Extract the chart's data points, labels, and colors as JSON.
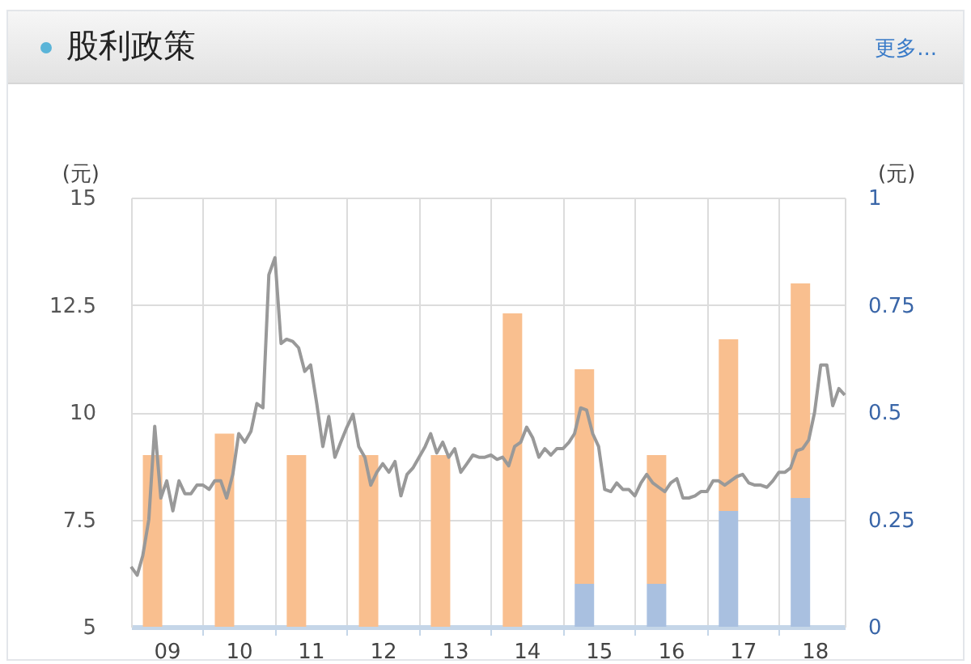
{
  "chart_data": {
    "type": "line",
    "title": "股利政策",
    "annotations": [
      "更多..."
    ],
    "ylabel": "(元)",
    "y2label": "(元)",
    "x": [
      "2009-01",
      "2009-02",
      "2009-03",
      "2009-04",
      "2009-05",
      "2009-06",
      "2009-07",
      "2009-08",
      "2009-09",
      "2009-10",
      "2009-11",
      "2009-12",
      "2010-01",
      "2010-02",
      "2010-03",
      "2010-04",
      "2010-05",
      "2010-06",
      "2010-07",
      "2010-08",
      "2010-09",
      "2010-10",
      "2010-11",
      "2010-12",
      "2011-01",
      "2011-02",
      "2011-03",
      "2011-04",
      "2011-05",
      "2011-06",
      "2011-07",
      "2011-08",
      "2011-09",
      "2011-10",
      "2011-11",
      "2011-12",
      "2012-01",
      "2012-02",
      "2012-03",
      "2012-04",
      "2012-05",
      "2012-06",
      "2012-07",
      "2012-08",
      "2012-09",
      "2012-10",
      "2012-11",
      "2012-12",
      "2013-01",
      "2013-02",
      "2013-03",
      "2013-04",
      "2013-05",
      "2013-06",
      "2013-07",
      "2013-08",
      "2013-09",
      "2013-10",
      "2013-11",
      "2013-12",
      "2014-01",
      "2014-02",
      "2014-03",
      "2014-04",
      "2014-05",
      "2014-06",
      "2014-07",
      "2014-08",
      "2014-09",
      "2014-10",
      "2014-11",
      "2014-12",
      "2015-01",
      "2015-02",
      "2015-03",
      "2015-04",
      "2015-05",
      "2015-06",
      "2015-07",
      "2015-08",
      "2015-09",
      "2015-10",
      "2015-11",
      "2015-12",
      "2016-01",
      "2016-02",
      "2016-03",
      "2016-04",
      "2016-05",
      "2016-06",
      "2016-07",
      "2016-08",
      "2016-09",
      "2016-10",
      "2016-11",
      "2016-12",
      "2017-01",
      "2017-02",
      "2017-03",
      "2017-04",
      "2017-05",
      "2017-06",
      "2017-07",
      "2017-08",
      "2017-09",
      "2017-10",
      "2017-11",
      "2017-12",
      "2018-01",
      "2018-02",
      "2018-03",
      "2018-04",
      "2018-05",
      "2018-06",
      "2018-07",
      "2018-08",
      "2018-09",
      "2018-10",
      "2018-11",
      "2018-12"
    ],
    "xlim": [
      "2009-01",
      "2018-12"
    ],
    "xticks": [
      {
        "value": "2009-07",
        "label": "09"
      },
      {
        "value": "2010-01",
        "label": null
      },
      {
        "value": "2010-07",
        "label": "10"
      },
      {
        "value": "2011-01",
        "label": null
      },
      {
        "value": "2011-07",
        "label": "11"
      },
      {
        "value": "2012-01",
        "label": null
      },
      {
        "value": "2012-07",
        "label": "12"
      },
      {
        "value": "2013-01",
        "label": null
      },
      {
        "value": "2013-07",
        "label": "13"
      },
      {
        "value": "2014-01",
        "label": null
      },
      {
        "value": "2014-07",
        "label": "14"
      },
      {
        "value": "2015-01",
        "label": null
      },
      {
        "value": "2015-07",
        "label": "15"
      },
      {
        "value": "2016-01",
        "label": null
      },
      {
        "value": "2016-07",
        "label": "16"
      },
      {
        "value": "2017-01",
        "label": null
      },
      {
        "value": "2017-07",
        "label": "17"
      },
      {
        "value": "2018-01",
        "label": null
      },
      {
        "value": "2018-07",
        "label": "18"
      }
    ],
    "ylim": [
      5,
      15
    ],
    "yticks": [
      5,
      7.5,
      10,
      12.5,
      15
    ],
    "y2lim": [
      0,
      1
    ],
    "y2ticks": [
      0,
      0.25,
      0.5,
      0.75,
      1
    ],
    "grid": true,
    "stacked": true,
    "series": [
      {
        "color": "#999999",
        "values": [
          6.4,
          6.2,
          6.65,
          7.5,
          9.67,
          8.0,
          8.4,
          7.7,
          8.4,
          8.1,
          8.1,
          8.3,
          8.3,
          8.2,
          8.4,
          8.4,
          8.0,
          8.55,
          9.5,
          9.3,
          9.55,
          10.2,
          10.1,
          13.2,
          13.6,
          11.6,
          11.7,
          11.65,
          11.5,
          10.95,
          11.1,
          10.2,
          9.2,
          9.9,
          8.95,
          9.3,
          9.65,
          9.95,
          9.2,
          8.95,
          8.3,
          8.6,
          8.8,
          8.6,
          8.85,
          8.05,
          8.55,
          8.7,
          8.95,
          9.2,
          9.5,
          9.05,
          9.3,
          8.95,
          9.15,
          8.6,
          8.8,
          9.0,
          8.95,
          8.95,
          9.0,
          8.9,
          8.95,
          8.75,
          9.2,
          9.3,
          9.65,
          9.4,
          8.95,
          9.15,
          9.0,
          9.15,
          9.15,
          9.3,
          9.5,
          10.1,
          10.05,
          9.5,
          9.2,
          8.2,
          8.15,
          8.35,
          8.2,
          8.2,
          8.05,
          8.35,
          8.55,
          8.35,
          8.25,
          8.15,
          8.35,
          8.45,
          8.0,
          8.0,
          8.05,
          8.15,
          8.15,
          8.4,
          8.4,
          8.3,
          8.4,
          8.5,
          8.55,
          8.35,
          8.3,
          8.3,
          8.25,
          8.4,
          8.6,
          8.6,
          8.7,
          9.1,
          9.15,
          9.35,
          10.0,
          11.1,
          11.1,
          10.15,
          10.55,
          10.4
        ]
      },
      {
        "type": "bar",
        "axis": "y2",
        "x": [
          "2009-04-20",
          "2010-04-20",
          "2011-04-20",
          "2012-04-20",
          "2013-04-20",
          "2014-04-20",
          "2015-04-20",
          "2016-04-20",
          "2017-04-20",
          "2018-04-20"
        ],
        "color": "#a9c0e0",
        "values": [
          0,
          0,
          0,
          0,
          0,
          0,
          0.1,
          0.1,
          0.27,
          0.3
        ]
      },
      {
        "type": "bar",
        "axis": "y2",
        "x": [
          "2009-04-20",
          "2010-04-20",
          "2011-04-20",
          "2012-04-20",
          "2013-04-20",
          "2014-04-20",
          "2015-04-20",
          "2016-04-20",
          "2017-04-20",
          "2018-04-20"
        ],
        "color": "#f9bf8f",
        "values": [
          0.4,
          0.45,
          0.4,
          0.4,
          0.4,
          0.73,
          0.5,
          0.3,
          0.4,
          0.5
        ]
      }
    ]
  }
}
